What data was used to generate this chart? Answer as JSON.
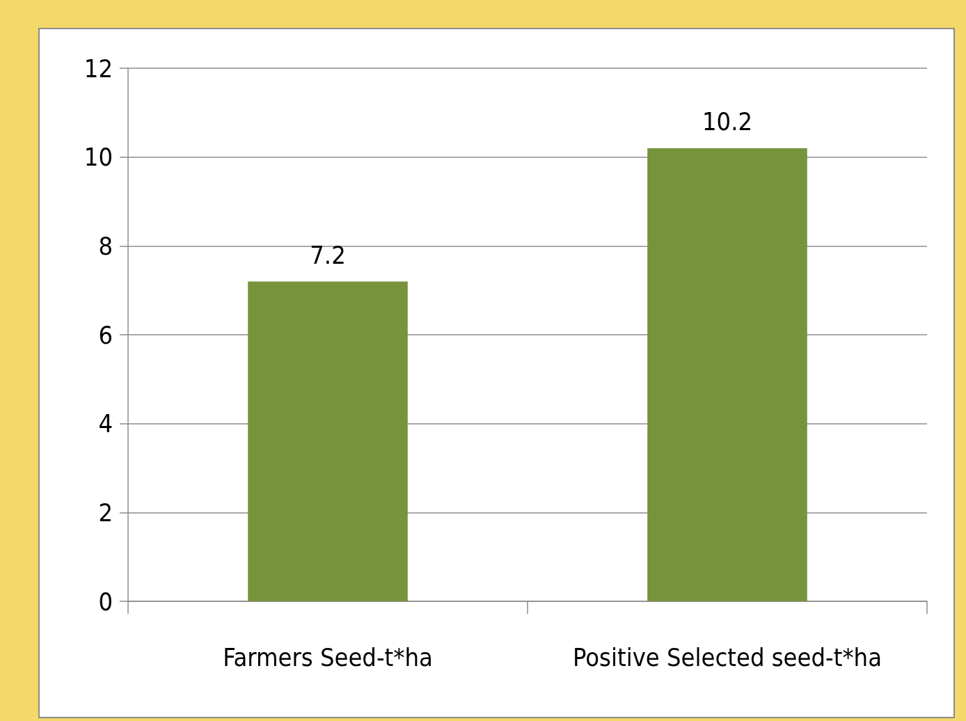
{
  "chart_data": {
    "type": "bar",
    "categories": [
      "Farmers Seed-t*ha",
      "Positive Selected seed-t*ha"
    ],
    "values": [
      7.2,
      10.2
    ],
    "color": "#77933c",
    "ylim": [
      0,
      12
    ],
    "yticks": [
      0,
      2,
      4,
      6,
      8,
      10,
      12
    ],
    "grid": "y",
    "data_labels": true
  }
}
